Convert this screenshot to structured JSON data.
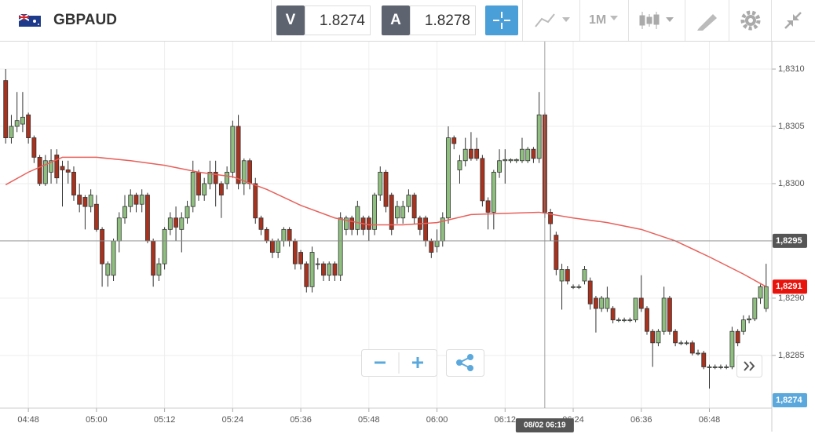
{
  "toolbar": {
    "symbol": "GBPAUD",
    "bid_label": "V",
    "bid": 1.8274,
    "ask_label": "A",
    "ask": 1.8278,
    "timeframe": "1M"
  },
  "chart_data": {
    "type": "candlestick",
    "x": [
      "04:44",
      "04:45",
      "04:46",
      "04:47",
      "04:48",
      "04:49",
      "04:50",
      "04:51",
      "04:52",
      "04:53",
      "04:54",
      "04:55",
      "04:56",
      "04:57",
      "04:58",
      "04:59",
      "05:00",
      "05:01",
      "05:02",
      "05:03",
      "05:04",
      "05:05",
      "05:06",
      "05:07",
      "05:08",
      "05:09",
      "05:10",
      "05:11",
      "05:12",
      "05:13",
      "05:14",
      "05:15",
      "05:16",
      "05:17",
      "05:18",
      "05:19",
      "05:20",
      "05:21",
      "05:22",
      "05:23",
      "05:24",
      "05:25",
      "05:26",
      "05:27",
      "05:28",
      "05:29",
      "05:30",
      "05:31",
      "05:32",
      "05:33",
      "05:34",
      "05:35",
      "05:36",
      "05:37",
      "05:38",
      "05:39",
      "05:40",
      "05:41",
      "05:42",
      "05:43",
      "05:44",
      "05:45",
      "05:46",
      "05:47",
      "05:48",
      "05:49",
      "05:50",
      "05:51",
      "05:52",
      "05:53",
      "05:54",
      "05:55",
      "05:56",
      "05:57",
      "05:58",
      "05:59",
      "06:00",
      "06:01",
      "06:02",
      "06:03",
      "06:04",
      "06:05",
      "06:06",
      "06:07",
      "06:08",
      "06:09",
      "06:10",
      "06:11",
      "06:12",
      "06:13",
      "06:14",
      "06:15",
      "06:16",
      "06:17",
      "06:18",
      "06:19",
      "06:20",
      "06:21",
      "06:22",
      "06:23",
      "06:24",
      "06:25",
      "06:26",
      "06:27",
      "06:28",
      "06:29",
      "06:30",
      "06:31",
      "06:32",
      "06:33",
      "06:34",
      "06:35",
      "06:36",
      "06:37",
      "06:38",
      "06:39",
      "06:40",
      "06:41",
      "06:42",
      "06:43",
      "06:44",
      "06:45",
      "06:46",
      "06:47",
      "06:48",
      "06:49",
      "06:50",
      "06:51",
      "06:52",
      "06:53",
      "06:54",
      "06:55",
      "06:56",
      "06:57",
      "06:58"
    ],
    "open": [
      1.8309,
      1.8304,
      1.8305,
      1.83052,
      1.8306,
      1.8304,
      1.83023,
      1.83,
      1.8301,
      1.83025,
      1.83015,
      1.83012,
      1.8301,
      1.8299,
      1.82988,
      1.8298,
      1.82982,
      1.8296,
      1.8292,
      1.8292,
      1.8295,
      1.8297,
      1.8298,
      1.8299,
      1.82982,
      1.8299,
      1.8295,
      1.8292,
      1.8293,
      1.8296,
      1.8297,
      1.8296,
      1.8297,
      1.8298,
      1.8301,
      1.8299,
      1.83,
      1.8301,
      1.83,
      1.83,
      1.8301,
      1.8305,
      1.83,
      1.8302,
      1.83,
      1.8297,
      1.8296,
      1.8295,
      1.8294,
      1.8295,
      1.8296,
      1.8295,
      1.8294,
      1.8293,
      1.8291,
      1.8293,
      1.8293,
      1.8292,
      1.8293,
      1.8292,
      1.8296,
      1.8297,
      1.8296,
      1.8297,
      1.8297,
      1.8296,
      1.8299,
      1.8301,
      1.8299,
      1.8297,
      1.8297,
      1.8298,
      1.8299,
      1.8297,
      1.8297,
      1.8295,
      1.82945,
      1.8295,
      1.8297,
      1.8304,
      1.83012,
      1.8302,
      1.8303,
      1.8303,
      1.83022,
      1.82985,
      1.82975,
      1.8301,
      1.8302,
      1.8302,
      1.8302,
      1.8302,
      1.8302,
      1.8303,
      1.83022,
      1.8306,
      1.82975,
      1.82955,
      1.82915,
      1.82925,
      1.8291,
      1.8291,
      1.82915,
      1.82915,
      1.829,
      1.82891,
      1.82891,
      1.82891,
      1.82881,
      1.82881,
      1.82881,
      1.82881,
      1.829,
      1.82891,
      1.82871,
      1.82861,
      1.82871,
      1.829,
      1.82871,
      1.82861,
      1.82861,
      1.82861,
      1.82852,
      1.82852,
      1.8284,
      1.8284,
      1.8284,
      1.8284,
      1.8284,
      1.82871,
      1.82871,
      1.82881,
      1.82882,
      1.829,
      1.82891
    ],
    "high": [
      1.831,
      1.8306,
      1.8308,
      1.8308,
      1.83062,
      1.83042,
      1.83025,
      1.83025,
      1.8303,
      1.8303,
      1.8302,
      1.8302,
      1.83015,
      1.83,
      1.8299,
      1.82995,
      1.8299,
      1.82962,
      1.82932,
      1.82952,
      1.82975,
      1.8299,
      1.82995,
      1.82992,
      1.82995,
      1.82992,
      1.82952,
      1.82935,
      1.82962,
      1.82975,
      1.8298,
      1.82975,
      1.82985,
      1.8302,
      1.83012,
      1.83005,
      1.8302,
      1.8302,
      1.83002,
      1.83015,
      1.83055,
      1.8306,
      1.83022,
      1.83022,
      1.83005,
      1.82972,
      1.82962,
      1.82952,
      1.82952,
      1.82962,
      1.82962,
      1.82952,
      1.82942,
      1.82932,
      1.82945,
      1.82935,
      1.82932,
      1.82932,
      1.82932,
      1.82975,
      1.82972,
      1.82972,
      1.82985,
      1.82972,
      1.82972,
      1.82992,
      1.83015,
      1.83012,
      1.82992,
      1.82985,
      1.82985,
      1.82995,
      1.82992,
      1.82972,
      1.82972,
      1.82952,
      1.8296,
      1.82975,
      1.8305,
      1.83042,
      1.83025,
      1.8304,
      1.83045,
      1.8304,
      1.83025,
      1.82988,
      1.83012,
      1.8303,
      1.8303,
      1.83022,
      1.83022,
      1.8304,
      1.83032,
      1.83032,
      1.8308,
      1.83062,
      1.82978,
      1.82958,
      1.8293,
      1.82928,
      1.82912,
      1.82912,
      1.82928,
      1.82918,
      1.82902,
      1.82902,
      1.8291,
      1.82893,
      1.82883,
      1.82883,
      1.82883,
      1.829,
      1.8292,
      1.82893,
      1.82873,
      1.82873,
      1.8291,
      1.82902,
      1.82873,
      1.82863,
      1.82863,
      1.82863,
      1.82855,
      1.82854,
      1.82842,
      1.82842,
      1.82842,
      1.82842,
      1.82875,
      1.82873,
      1.82885,
      1.82885,
      1.829,
      1.82912,
      1.8293
    ],
    "low": [
      1.83035,
      1.83035,
      1.83045,
      1.83045,
      1.83035,
      1.83018,
      1.82998,
      1.82998,
      1.83,
      1.83,
      1.8298,
      1.83,
      1.82985,
      1.82975,
      1.8296,
      1.82975,
      1.82958,
      1.8291,
      1.8291,
      1.82915,
      1.8294,
      1.82965,
      1.82975,
      1.82975,
      1.82975,
      1.82948,
      1.8291,
      1.82915,
      1.82925,
      1.82955,
      1.8295,
      1.8294,
      1.82965,
      1.82975,
      1.82985,
      1.82985,
      1.82995,
      1.8298,
      1.8297,
      1.82995,
      1.83005,
      1.82995,
      1.8299,
      1.82995,
      1.82965,
      1.82955,
      1.82948,
      1.82935,
      1.82935,
      1.82945,
      1.82945,
      1.82925,
      1.82925,
      1.82905,
      1.82905,
      1.82925,
      1.82915,
      1.82915,
      1.82915,
      1.82915,
      1.82955,
      1.82955,
      1.82955,
      1.82955,
      1.8295,
      1.82955,
      1.82985,
      1.82975,
      1.82955,
      1.82965,
      1.82965,
      1.82975,
      1.82965,
      1.82955,
      1.82945,
      1.82935,
      1.8294,
      1.82945,
      1.82965,
      1.8303,
      1.83,
      1.83015,
      1.8302,
      1.8302,
      1.8298,
      1.8296,
      1.8296,
      1.83005,
      1.83,
      1.83018,
      1.83018,
      1.83018,
      1.83018,
      1.83018,
      1.83018,
      1.8297,
      1.8295,
      1.8292,
      1.8289,
      1.82912,
      1.82908,
      1.82908,
      1.82912,
      1.8289,
      1.8287,
      1.82888,
      1.82888,
      1.82878,
      1.82879,
      1.82879,
      1.82879,
      1.82879,
      1.82888,
      1.82868,
      1.8284,
      1.82858,
      1.82868,
      1.82868,
      1.82858,
      1.82859,
      1.82859,
      1.8285,
      1.8285,
      1.82838,
      1.82821,
      1.82838,
      1.82838,
      1.82838,
      1.82838,
      1.82858,
      1.82868,
      1.82878,
      1.8288,
      1.82895,
      1.82888
    ],
    "close": [
      1.8304,
      1.8305,
      1.83055,
      1.83058,
      1.8304,
      1.83023,
      1.83,
      1.8302,
      1.8302,
      1.83005,
      1.83012,
      1.8301,
      1.8299,
      1.82982,
      1.8298,
      1.8299,
      1.8296,
      1.8293,
      1.8293,
      1.8295,
      1.8297,
      1.8298,
      1.8299,
      1.82982,
      1.8299,
      1.8295,
      1.8292,
      1.8293,
      1.8296,
      1.8297,
      1.82962,
      1.8297,
      1.8298,
      1.8301,
      1.8299,
      1.83,
      1.8301,
      1.83,
      1.8299,
      1.8301,
      1.8305,
      1.83,
      1.8302,
      1.83,
      1.8297,
      1.8296,
      1.8295,
      1.8294,
      1.8295,
      1.8296,
      1.8295,
      1.8293,
      1.8293,
      1.8291,
      1.8294,
      1.8293,
      1.8292,
      1.8293,
      1.8292,
      1.8297,
      1.8297,
      1.8296,
      1.8298,
      1.8296,
      1.8296,
      1.8299,
      1.8301,
      1.8298,
      1.8296,
      1.8298,
      1.8298,
      1.8299,
      1.8297,
      1.8296,
      1.8295,
      1.8294,
      1.8295,
      1.8297,
      1.8304,
      1.83035,
      1.8302,
      1.8303,
      1.83022,
      1.83022,
      1.82985,
      1.82975,
      1.8301,
      1.8302,
      1.83021,
      1.83021,
      1.83021,
      1.8303,
      1.8303,
      1.83022,
      1.8306,
      1.82975,
      1.82965,
      1.82925,
      1.82925,
      1.82915,
      1.8291,
      1.8291,
      1.82925,
      1.82895,
      1.82891,
      1.829,
      1.829,
      1.82881,
      1.82881,
      1.82881,
      1.82881,
      1.829,
      1.82891,
      1.82871,
      1.82861,
      1.82871,
      1.829,
      1.82871,
      1.82861,
      1.82861,
      1.82861,
      1.82852,
      1.82852,
      1.8284,
      1.8284,
      1.8284,
      1.8284,
      1.8284,
      1.82871,
      1.82861,
      1.82881,
      1.82882,
      1.829,
      1.8291,
      1.8291
    ],
    "up_color": "#8fbf7f",
    "down_color": "#a8321e",
    "ma": {
      "color": "#e8605a",
      "x": [
        "04:44",
        "04:48",
        "04:54",
        "05:00",
        "05:06",
        "05:12",
        "05:18",
        "05:24",
        "05:30",
        "05:36",
        "05:42",
        "05:48",
        "05:54",
        "06:00",
        "06:06",
        "06:12",
        "06:18",
        "06:24",
        "06:30",
        "06:36",
        "06:42",
        "06:48",
        "06:54",
        "06:58"
      ],
      "values": [
        1.82999,
        1.8301,
        1.83023,
        1.83023,
        1.8302,
        1.83016,
        1.8301,
        1.83006,
        1.82995,
        1.82981,
        1.8297,
        1.82964,
        1.82964,
        1.82966,
        1.82973,
        1.82974,
        1.82975,
        1.8297,
        1.82966,
        1.8296,
        1.8295,
        1.82936,
        1.82921,
        1.8291
      ]
    },
    "xlim": [
      "04:43",
      "06:59"
    ],
    "xticks": [
      "04:48",
      "05:00",
      "05:12",
      "05:24",
      "05:36",
      "05:48",
      "06:00",
      "06:12",
      "06:24",
      "06:36",
      "06:48"
    ],
    "ylim": [
      1.82804,
      1.83124
    ],
    "yticks": [
      {
        "value": 1.8285,
        "label": "1,8285"
      },
      {
        "value": 1.829,
        "label": "1,8290"
      },
      {
        "value": 1.8295,
        "label": "1,8295"
      },
      {
        "value": 1.83,
        "label": "1,8300"
      },
      {
        "value": 1.8305,
        "label": "1,8305"
      },
      {
        "value": 1.831,
        "label": "1,8310"
      }
    ],
    "grid": true,
    "crosshair": {
      "x": "06:19",
      "x_label": "08/02 06:19",
      "y": {
        "value": 1.8295,
        "label": "1,8295"
      }
    },
    "last_price": {
      "value": 1.8291,
      "label": "1,8291",
      "color": "#e8140c"
    },
    "bid_tag": {
      "label": "1,8274",
      "color": "#5aa8dc"
    }
  }
}
